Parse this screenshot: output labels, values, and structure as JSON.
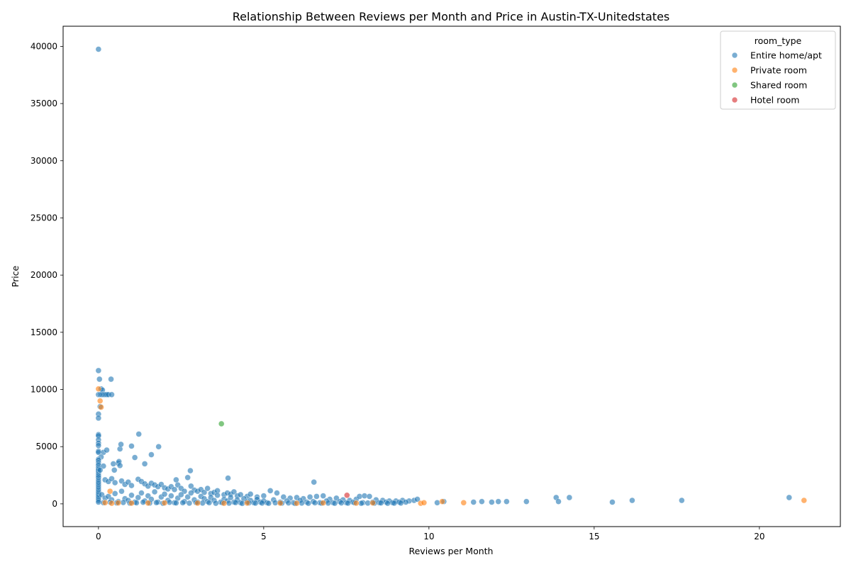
{
  "chart_data": {
    "type": "scatter",
    "title": "Relationship Between Reviews per Month and Price in Austin-TX-Unitedstates",
    "xlabel": "Reviews per Month",
    "ylabel": "Price",
    "xlim": [
      -1.07,
      22.45
    ],
    "ylim": [
      -1990,
      41760
    ],
    "xticks": [
      0,
      5,
      10,
      15,
      20
    ],
    "yticks": [
      0,
      5000,
      10000,
      15000,
      20000,
      25000,
      30000,
      35000,
      40000
    ],
    "grid": false,
    "legend": {
      "title": "room_type",
      "placement": "top-right"
    },
    "series": [
      {
        "name": "Entire home/apt",
        "color": "#1f77b4",
        "points": [
          [
            0.0,
            39750
          ],
          [
            0.0,
            11650
          ],
          [
            0.03,
            10900
          ],
          [
            0.38,
            10900
          ],
          [
            0.08,
            10050
          ],
          [
            0.12,
            9950
          ],
          [
            0.0,
            9550
          ],
          [
            0.05,
            9550
          ],
          [
            0.1,
            9550
          ],
          [
            0.15,
            9550
          ],
          [
            0.2,
            9550
          ],
          [
            0.25,
            9550
          ],
          [
            0.3,
            9550
          ],
          [
            0.4,
            9550
          ],
          [
            0.05,
            8500
          ],
          [
            0.0,
            7850
          ],
          [
            0.0,
            7500
          ],
          [
            0.0,
            6050
          ],
          [
            0.0,
            5950
          ],
          [
            0.0,
            5600
          ],
          [
            0.0,
            5300
          ],
          [
            0.0,
            5100
          ],
          [
            0.0,
            4600
          ],
          [
            0.0,
            4500
          ],
          [
            0.15,
            4500
          ],
          [
            0.25,
            4700
          ],
          [
            0.08,
            4100
          ],
          [
            0.0,
            3900
          ],
          [
            0.0,
            3800
          ],
          [
            0.0,
            3600
          ],
          [
            0.0,
            3450
          ],
          [
            0.0,
            3350
          ],
          [
            0.0,
            3200
          ],
          [
            0.0,
            3100
          ],
          [
            0.0,
            3000
          ],
          [
            0.0,
            2900
          ],
          [
            0.0,
            2750
          ],
          [
            0.0,
            2600
          ],
          [
            0.0,
            2450
          ],
          [
            0.0,
            2300
          ],
          [
            0.0,
            2100
          ],
          [
            0.0,
            1950
          ],
          [
            0.0,
            1800
          ],
          [
            0.0,
            1650
          ],
          [
            0.0,
            1500
          ],
          [
            0.0,
            1350
          ],
          [
            0.0,
            1200
          ],
          [
            0.0,
            1050
          ],
          [
            0.0,
            900
          ],
          [
            0.0,
            750
          ],
          [
            0.0,
            600
          ],
          [
            0.0,
            450
          ],
          [
            0.0,
            300
          ],
          [
            0.0,
            150
          ],
          [
            0.15,
            3300
          ],
          [
            0.05,
            2950
          ],
          [
            0.45,
            3500
          ],
          [
            0.6,
            3550
          ],
          [
            0.62,
            3700
          ],
          [
            0.65,
            3350
          ],
          [
            0.48,
            2950
          ],
          [
            0.65,
            4800
          ],
          [
            0.68,
            5200
          ],
          [
            1.22,
            6100
          ],
          [
            1.0,
            5050
          ],
          [
            1.82,
            5000
          ],
          [
            1.1,
            4050
          ],
          [
            1.6,
            4300
          ],
          [
            1.4,
            3500
          ],
          [
            2.78,
            2900
          ],
          [
            2.7,
            2300
          ],
          [
            3.92,
            2250
          ],
          [
            6.52,
            1900
          ],
          [
            2.35,
            2100
          ],
          [
            2.4,
            1650
          ],
          [
            0.2,
            2100
          ],
          [
            0.3,
            1950
          ],
          [
            0.4,
            2200
          ],
          [
            0.5,
            1850
          ],
          [
            0.7,
            2000
          ],
          [
            0.8,
            1700
          ],
          [
            0.9,
            1900
          ],
          [
            1.0,
            1600
          ],
          [
            1.2,
            2150
          ],
          [
            1.3,
            1950
          ],
          [
            1.4,
            1750
          ],
          [
            1.5,
            1550
          ],
          [
            1.6,
            1800
          ],
          [
            1.7,
            1650
          ],
          [
            1.8,
            1500
          ],
          [
            1.9,
            1700
          ],
          [
            2.0,
            1400
          ],
          [
            2.1,
            1300
          ],
          [
            2.2,
            1500
          ],
          [
            2.3,
            1250
          ],
          [
            2.5,
            1350
          ],
          [
            2.6,
            1100
          ],
          [
            2.8,
            1550
          ],
          [
            2.9,
            1200
          ],
          [
            3.0,
            1100
          ],
          [
            3.1,
            1250
          ],
          [
            3.2,
            1000
          ],
          [
            3.3,
            1350
          ],
          [
            3.4,
            900
          ],
          [
            3.5,
            1000
          ],
          [
            3.6,
            1150
          ],
          [
            3.8,
            800
          ],
          [
            3.9,
            950
          ],
          [
            4.0,
            850
          ],
          [
            4.1,
            1050
          ],
          [
            4.2,
            700
          ],
          [
            4.3,
            800
          ],
          [
            4.5,
            650
          ],
          [
            4.6,
            850
          ],
          [
            4.8,
            600
          ],
          [
            5.0,
            700
          ],
          [
            5.2,
            1150
          ],
          [
            5.4,
            950
          ],
          [
            5.6,
            600
          ],
          [
            5.8,
            500
          ],
          [
            6.0,
            550
          ],
          [
            6.2,
            450
          ],
          [
            6.4,
            600
          ],
          [
            6.6,
            650
          ],
          [
            6.8,
            700
          ],
          [
            7.0,
            400
          ],
          [
            7.2,
            500
          ],
          [
            7.4,
            350
          ],
          [
            7.6,
            300
          ],
          [
            7.8,
            400
          ],
          [
            7.9,
            650
          ],
          [
            8.05,
            700
          ],
          [
            8.2,
            650
          ],
          [
            8.4,
            350
          ],
          [
            8.6,
            300
          ],
          [
            8.8,
            250
          ],
          [
            9.0,
            250
          ],
          [
            9.2,
            300
          ],
          [
            9.4,
            250
          ],
          [
            9.55,
            300
          ],
          [
            9.65,
            400
          ],
          [
            9.3,
            150
          ],
          [
            10.25,
            100
          ],
          [
            10.45,
            200
          ],
          [
            11.35,
            150
          ],
          [
            11.6,
            200
          ],
          [
            11.9,
            150
          ],
          [
            12.1,
            200
          ],
          [
            12.35,
            200
          ],
          [
            12.95,
            200
          ],
          [
            13.85,
            550
          ],
          [
            13.92,
            200
          ],
          [
            14.25,
            550
          ],
          [
            15.55,
            150
          ],
          [
            16.15,
            300
          ],
          [
            17.65,
            300
          ],
          [
            20.9,
            550
          ],
          [
            0.1,
            800
          ],
          [
            0.2,
            500
          ],
          [
            0.3,
            650
          ],
          [
            0.4,
            350
          ],
          [
            0.5,
            900
          ],
          [
            0.6,
            200
          ],
          [
            0.7,
            1100
          ],
          [
            0.8,
            450
          ],
          [
            0.9,
            300
          ],
          [
            1.0,
            750
          ],
          [
            1.1,
            150
          ],
          [
            1.2,
            550
          ],
          [
            1.3,
            950
          ],
          [
            1.4,
            250
          ],
          [
            1.5,
            700
          ],
          [
            1.6,
            400
          ],
          [
            1.7,
            1050
          ],
          [
            1.8,
            150
          ],
          [
            1.9,
            600
          ],
          [
            2.0,
            850
          ],
          [
            2.1,
            300
          ],
          [
            2.2,
            700
          ],
          [
            2.3,
            100
          ],
          [
            2.4,
            500
          ],
          [
            2.5,
            800
          ],
          [
            2.6,
            200
          ],
          [
            2.7,
            600
          ],
          [
            2.8,
            950
          ],
          [
            2.9,
            350
          ],
          [
            3.0,
            150
          ],
          [
            3.1,
            650
          ],
          [
            3.2,
            450
          ],
          [
            3.3,
            200
          ],
          [
            3.4,
            550
          ],
          [
            3.5,
            300
          ],
          [
            3.6,
            750
          ],
          [
            3.7,
            150
          ],
          [
            3.8,
            400
          ],
          [
            3.9,
            250
          ],
          [
            4.0,
            550
          ],
          [
            4.1,
            150
          ],
          [
            4.2,
            350
          ],
          [
            4.3,
            100
          ],
          [
            4.4,
            450
          ],
          [
            4.5,
            200
          ],
          [
            4.6,
            300
          ],
          [
            4.7,
            100
          ],
          [
            4.8,
            400
          ],
          [
            4.9,
            150
          ],
          [
            5.0,
            250
          ],
          [
            5.1,
            100
          ],
          [
            5.3,
            350
          ],
          [
            5.5,
            150
          ],
          [
            5.7,
            250
          ],
          [
            5.9,
            100
          ],
          [
            6.1,
            300
          ],
          [
            6.3,
            150
          ],
          [
            6.5,
            200
          ],
          [
            6.7,
            100
          ],
          [
            6.9,
            250
          ],
          [
            7.1,
            100
          ],
          [
            7.3,
            200
          ],
          [
            7.5,
            100
          ],
          [
            7.7,
            150
          ],
          [
            8.0,
            100
          ],
          [
            8.3,
            150
          ],
          [
            8.5,
            100
          ],
          [
            8.7,
            150
          ],
          [
            8.9,
            100
          ],
          [
            9.1,
            150
          ],
          [
            0.15,
            100
          ],
          [
            0.35,
            150
          ],
          [
            0.55,
            80
          ],
          [
            0.75,
            120
          ],
          [
            0.95,
            60
          ],
          [
            1.15,
            90
          ],
          [
            1.35,
            140
          ],
          [
            1.55,
            70
          ],
          [
            1.75,
            110
          ],
          [
            1.95,
            50
          ],
          [
            2.15,
            130
          ],
          [
            2.35,
            80
          ],
          [
            2.55,
            100
          ],
          [
            2.75,
            60
          ],
          [
            2.95,
            120
          ],
          [
            3.15,
            70
          ],
          [
            3.35,
            100
          ],
          [
            3.55,
            50
          ],
          [
            3.75,
            90
          ],
          [
            3.95,
            60
          ],
          [
            4.15,
            110
          ],
          [
            4.35,
            40
          ],
          [
            4.55,
            80
          ],
          [
            4.75,
            60
          ],
          [
            4.95,
            70
          ],
          [
            5.15,
            50
          ],
          [
            5.35,
            90
          ],
          [
            5.55,
            60
          ],
          [
            5.75,
            80
          ],
          [
            5.95,
            40
          ],
          [
            6.15,
            70
          ],
          [
            6.35,
            50
          ],
          [
            6.55,
            90
          ],
          [
            6.75,
            60
          ],
          [
            6.95,
            70
          ],
          [
            7.15,
            50
          ],
          [
            7.35,
            80
          ],
          [
            7.55,
            60
          ],
          [
            7.75,
            90
          ],
          [
            7.95,
            50
          ],
          [
            8.15,
            70
          ],
          [
            8.35,
            60
          ],
          [
            8.55,
            80
          ],
          [
            8.75,
            50
          ],
          [
            8.95,
            60
          ],
          [
            9.15,
            70
          ]
        ]
      },
      {
        "name": "Private room",
        "color": "#ff7f0e",
        "points": [
          [
            0.0,
            10050
          ],
          [
            0.05,
            9000
          ],
          [
            0.08,
            8450
          ],
          [
            0.35,
            1100
          ],
          [
            0.2,
            100
          ],
          [
            0.4,
            50
          ],
          [
            0.6,
            80
          ],
          [
            1.0,
            60
          ],
          [
            1.5,
            70
          ],
          [
            2.0,
            80
          ],
          [
            3.0,
            60
          ],
          [
            3.8,
            50
          ],
          [
            4.5,
            70
          ],
          [
            5.5,
            60
          ],
          [
            6.0,
            50
          ],
          [
            6.8,
            80
          ],
          [
            7.8,
            60
          ],
          [
            8.3,
            80
          ],
          [
            9.75,
            50
          ],
          [
            9.85,
            100
          ],
          [
            10.4,
            200
          ],
          [
            11.05,
            100
          ],
          [
            21.35,
            300
          ]
        ]
      },
      {
        "name": "Shared room",
        "color": "#2ca02c",
        "points": [
          [
            3.72,
            7000
          ]
        ]
      },
      {
        "name": "Hotel room",
        "color": "#d62728",
        "points": [
          [
            7.52,
            750
          ]
        ]
      }
    ]
  }
}
